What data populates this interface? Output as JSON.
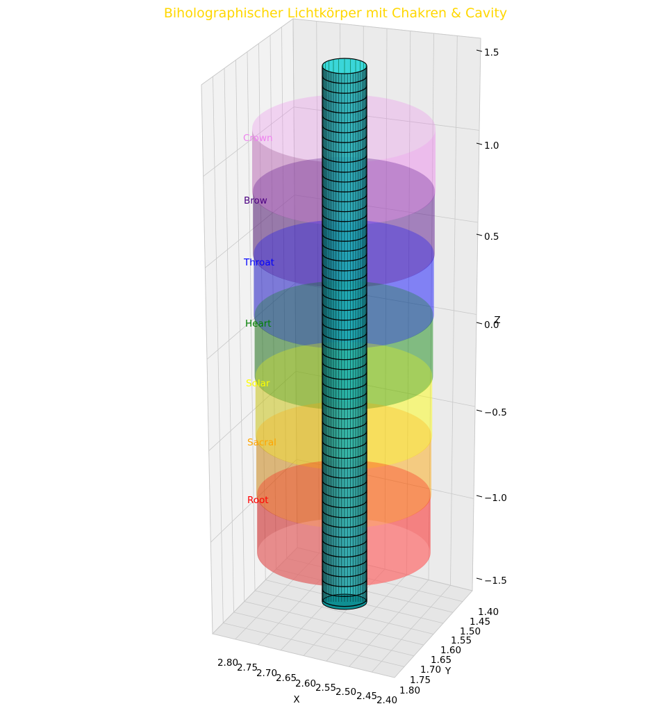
{
  "chart_data": {
    "type": "3d-surface",
    "title": "Biholographischer Lichtkörper mit Chakren & Cavity",
    "title_color": "#FFD700",
    "xlabel": "X",
    "ylabel": "Y",
    "zlabel": "Z",
    "x_ticks": [
      "2.80",
      "2.75",
      "2.70",
      "2.65",
      "2.60",
      "2.55",
      "2.50",
      "2.45",
      "2.40"
    ],
    "y_ticks": [
      "1.40",
      "1.45",
      "1.50",
      "1.55",
      "1.60",
      "1.65",
      "1.70",
      "1.75",
      "1.80"
    ],
    "z_ticks": [
      "1.5",
      "1.0",
      "0.5",
      "0.0",
      "−0.5",
      "−1.0",
      "−1.5"
    ],
    "zlim": [
      -1.5,
      1.5
    ],
    "grid": true,
    "chakras": [
      {
        "name": "Crown",
        "color": "#EE82EE"
      },
      {
        "name": "Brow",
        "color": "#4B0082"
      },
      {
        "name": "Throat",
        "color": "#0000FF"
      },
      {
        "name": "Heart",
        "color": "#008000"
      },
      {
        "name": "Solar",
        "color": "#FFFF00"
      },
      {
        "name": "Sacral",
        "color": "#FFA500"
      },
      {
        "name": "Root",
        "color": "#FF0000"
      }
    ],
    "cavity": {
      "color": "#00CED1"
    }
  }
}
